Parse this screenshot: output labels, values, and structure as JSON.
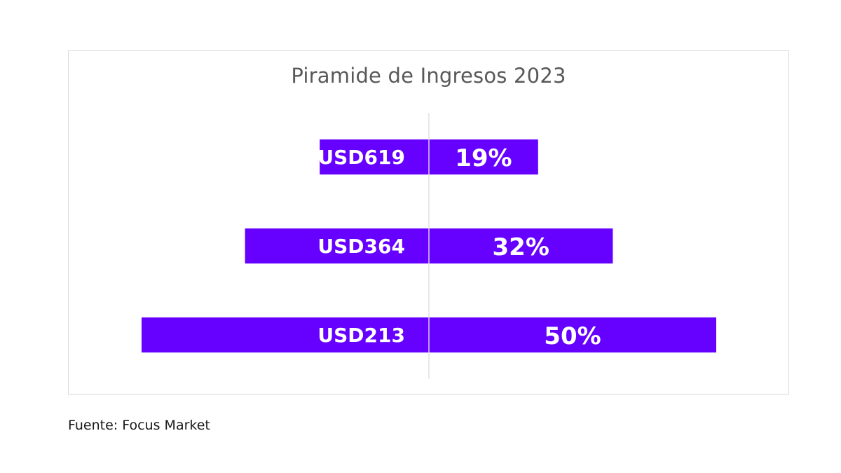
{
  "chart_data": {
    "type": "bar",
    "title": "Piramide de Ingresos 2023",
    "orientation": "horizontal-diverging",
    "categories": [
      "USD619",
      "USD364",
      "USD213"
    ],
    "series": [
      {
        "values": [
          19,
          32,
          50
        ]
      }
    ],
    "value_labels": [
      "19%",
      "32%",
      "50%"
    ],
    "bar_color": "#6600FF",
    "axis_line_color": "#d0d0d0",
    "legend": "none",
    "grid": false
  },
  "footer": {
    "source": "Fuente: Focus Market"
  }
}
